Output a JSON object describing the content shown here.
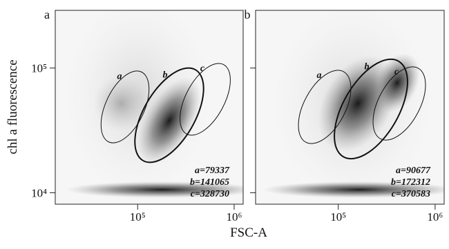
{
  "xlabel": "FSC-A",
  "ylabel": "chl a fluorescence",
  "chart_data": [
    {
      "type": "density",
      "panel_label": "a",
      "log_x": true,
      "log_y": true,
      "xlim": [
        14000,
        1240000
      ],
      "ylim": [
        8100,
        290000
      ],
      "xticks": [
        {
          "value": 100000,
          "label": "10⁵"
        },
        {
          "value": 1000000,
          "label": "10⁶"
        }
      ],
      "yticks": [
        {
          "value": 10000,
          "label": "10⁴"
        },
        {
          "value": 100000,
          "label": "10⁵"
        }
      ],
      "gate_labels": [
        "a",
        "b",
        "c"
      ],
      "annotations": [
        "a=79337",
        "b=141065",
        "c=328730"
      ]
    },
    {
      "type": "density",
      "panel_label": "b",
      "log_x": true,
      "log_y": true,
      "xlim": [
        14000,
        1240000
      ],
      "ylim": [
        8100,
        290000
      ],
      "xticks": [
        {
          "value": 100000,
          "label": "10⁵"
        },
        {
          "value": 1000000,
          "label": "10⁶"
        }
      ],
      "yticks": [
        10000,
        100000
      ],
      "gate_labels": [
        "a",
        "b",
        "c"
      ],
      "annotations": [
        "a=90677",
        "b=172312",
        "c=370583"
      ]
    }
  ]
}
